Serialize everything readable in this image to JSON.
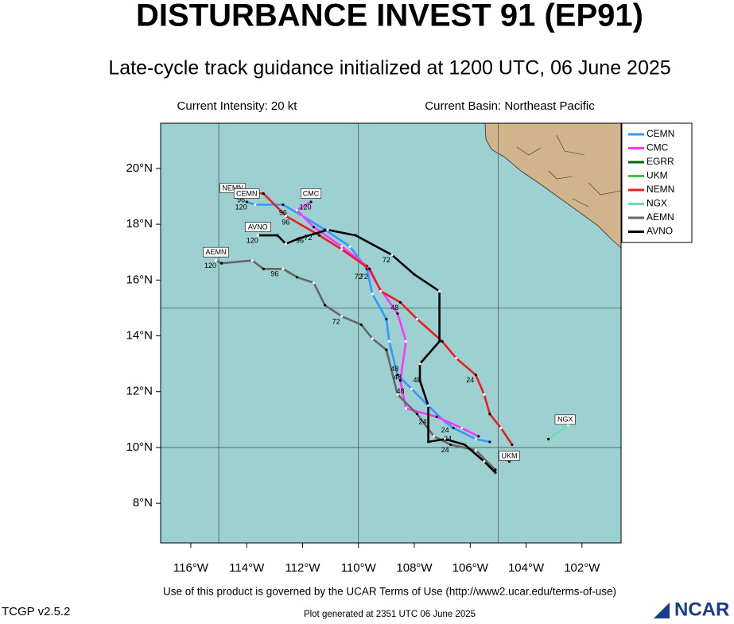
{
  "title": "DISTURBANCE INVEST 91 (EP91)",
  "subtitle": "Late-cycle track guidance initialized at 1200 UTC, 06 June 2025",
  "info_left": "Current Intensity: 20 kt",
  "info_right": "Current Basin: Northeast Pacific",
  "lon_range": [
    -117.08,
    -100.6
  ],
  "lat_range": [
    6.58,
    21.62
  ],
  "xticks": [
    {
      "value": -116,
      "label": "116°W"
    },
    {
      "value": -114,
      "label": "114°W"
    },
    {
      "value": -112,
      "label": "112°W"
    },
    {
      "value": -110,
      "label": "110°W"
    },
    {
      "value": -108,
      "label": "108°W"
    },
    {
      "value": -106,
      "label": "106°W"
    },
    {
      "value": -104,
      "label": "104°W"
    },
    {
      "value": -102,
      "label": "102°W"
    }
  ],
  "yticks": [
    {
      "value": 8,
      "label": "8°N"
    },
    {
      "value": 10,
      "label": "10°N"
    },
    {
      "value": 12,
      "label": "12°N"
    },
    {
      "value": 14,
      "label": "14°N"
    },
    {
      "value": 16,
      "label": "16°N"
    },
    {
      "value": 18,
      "label": "18°N"
    },
    {
      "value": 20,
      "label": "20°N"
    }
  ],
  "grid_lons": [
    -115,
    -110,
    -105
  ],
  "grid_lats": [
    10,
    15
  ],
  "tracks": [
    {
      "name": "CEMN",
      "color": "#3399ff",
      "lons": [
        -105.3,
        -105.8,
        -106.6,
        -107.0,
        -107.5,
        -108.1,
        -108.6,
        -108.9,
        -109.0,
        -109.5,
        -109.7,
        -110.3,
        -111.2,
        -112.0,
        -112.7,
        -113.7,
        -114.0
      ],
      "lats": [
        10.2,
        10.3,
        10.7,
        11.0,
        11.5,
        12.1,
        12.6,
        13.8,
        14.6,
        15.5,
        16.4,
        17.2,
        17.8,
        18.3,
        18.7,
        18.7,
        18.8
      ]
    },
    {
      "name": "CMC",
      "color": "#ff33ff",
      "lons": [
        -105.7,
        -106.3,
        -107.2,
        -108.3,
        -108.5,
        -108.3,
        -108.6,
        -109.3,
        -109.7,
        -110.6,
        -111.6,
        -112.2,
        -111.7
      ],
      "lats": [
        10.4,
        10.7,
        11.1,
        11.4,
        12.4,
        13.8,
        14.8,
        15.8,
        16.5,
        17.2,
        17.9,
        18.5,
        18.8
      ]
    },
    {
      "name": "EGRR",
      "color": "#006600",
      "lons": [],
      "lats": []
    },
    {
      "name": "UKM",
      "color": "#33cc33",
      "lons": [
        -104.6,
        -104.8
      ],
      "lats": [
        9.5,
        9.6
      ]
    },
    {
      "name": "NEMN",
      "color": "#e52020",
      "lons": [
        -104.5,
        -104.9,
        -105.3,
        -105.5,
        -105.8,
        -106.5,
        -107.0,
        -107.9,
        -108.5,
        -109.2,
        -109.6,
        -110.6,
        -111.4,
        -112.6,
        -113.4,
        -114.4
      ],
      "lats": [
        10.1,
        10.7,
        11.2,
        11.9,
        12.6,
        13.2,
        13.8,
        14.6,
        15.2,
        15.6,
        16.4,
        17.1,
        17.6,
        18.3,
        19.1,
        19.2
      ]
    },
    {
      "name": "NGX",
      "color": "#66e0b0",
      "lons": [
        -103.2,
        -102.5
      ],
      "lats": [
        10.3,
        10.8
      ]
    },
    {
      "name": "AEMN",
      "color": "#666666",
      "lons": [
        -105.1,
        -105.8,
        -106.7,
        -107.3,
        -107.9,
        -108.6,
        -109.0,
        -109.5,
        -109.9,
        -110.6,
        -111.2,
        -111.6,
        -112.2,
        -112.7,
        -113.4,
        -113.8,
        -114.9,
        -115.1
      ],
      "lats": [
        9.2,
        9.9,
        10.1,
        10.4,
        11.2,
        11.9,
        13.5,
        13.9,
        14.4,
        14.7,
        15.1,
        15.9,
        16.1,
        16.4,
        16.4,
        16.7,
        16.6,
        16.7
      ]
    },
    {
      "name": "AVNO",
      "color": "#000000",
      "lons": [
        -105.1,
        -105.5,
        -106.2,
        -106.9,
        -107.5,
        -107.5,
        -107.8,
        -107.8,
        -107.1,
        -107.1,
        -108.0,
        -108.8,
        -110.1,
        -111.1,
        -112.1,
        -112.6,
        -112.9,
        -113.6
      ],
      "lats": [
        9.1,
        9.5,
        10.1,
        10.3,
        10.2,
        11.5,
        12.4,
        13.0,
        13.8,
        15.6,
        16.2,
        16.9,
        17.6,
        17.8,
        17.5,
        17.3,
        17.6,
        17.6
      ]
    }
  ],
  "hour_labels": [
    {
      "text": "120",
      "lon": -114.2,
      "lat": 18.6
    },
    {
      "text": "96",
      "lon": -114.2,
      "lat": 18.85
    },
    {
      "text": "96",
      "lon": -112.7,
      "lat": 18.4
    },
    {
      "text": "96",
      "lon": -112.6,
      "lat": 18.05
    },
    {
      "text": "120",
      "lon": -111.9,
      "lat": 18.6
    },
    {
      "text": "120",
      "lon": -113.8,
      "lat": 17.4
    },
    {
      "text": "96",
      "lon": -112.1,
      "lat": 17.4
    },
    {
      "text": "72",
      "lon": -111.8,
      "lat": 17.5
    },
    {
      "text": "120",
      "lon": -115.3,
      "lat": 16.5
    },
    {
      "text": "96",
      "lon": -113.0,
      "lat": 16.2
    },
    {
      "text": "72",
      "lon": -109.0,
      "lat": 16.7
    },
    {
      "text": "72",
      "lon": -110.0,
      "lat": 16.1
    },
    {
      "text": "72",
      "lon": -109.8,
      "lat": 16.1
    },
    {
      "text": "72",
      "lon": -110.8,
      "lat": 14.5
    },
    {
      "text": "48",
      "lon": -108.7,
      "lat": 15.0
    },
    {
      "text": "48",
      "lon": -108.7,
      "lat": 12.8
    },
    {
      "text": "48",
      "lon": -108.6,
      "lat": 12.5
    },
    {
      "text": "48",
      "lon": -107.9,
      "lat": 12.4
    },
    {
      "text": "48",
      "lon": -108.5,
      "lat": 12.0
    },
    {
      "text": "24",
      "lon": -106.0,
      "lat": 12.4
    },
    {
      "text": "24",
      "lon": -107.7,
      "lat": 10.9
    },
    {
      "text": "24",
      "lon": -106.9,
      "lat": 10.6
    },
    {
      "text": "24",
      "lon": -106.8,
      "lat": 10.3
    },
    {
      "text": "24",
      "lon": -106.9,
      "lat": 9.9
    }
  ],
  "name_tags": [
    {
      "text": "NEMN",
      "lon": -114.5,
      "lat": 19.3
    },
    {
      "text": "CEMN",
      "lon": -114.0,
      "lat": 19.1
    },
    {
      "text": "CMC",
      "lon": -111.7,
      "lat": 19.1
    },
    {
      "text": "AVNO",
      "lon": -113.6,
      "lat": 17.9
    },
    {
      "text": "AEMN",
      "lon": -115.1,
      "lat": 17.0
    },
    {
      "text": "NGX",
      "lon": -102.6,
      "lat": 11.0
    },
    {
      "text": "UKM",
      "lon": -104.6,
      "lat": 9.7
    }
  ],
  "terms": "Use of this product is governed by the UCAR Terms of Use (http://www2.ucar.edu/terms-of-use)",
  "version": "TCGP v2.5.2",
  "generated": "Plot generated at 2351 UTC   06 June 2025",
  "logo": "NCAR"
}
